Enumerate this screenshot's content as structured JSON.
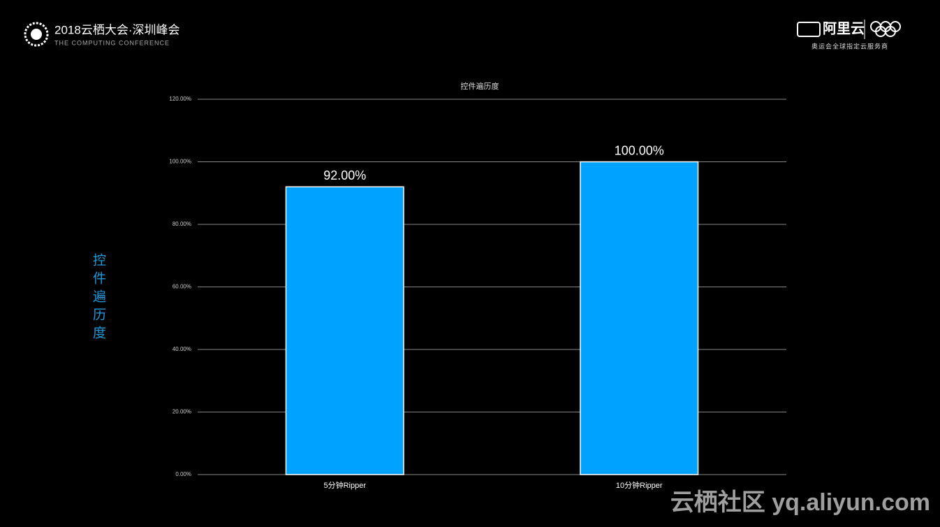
{
  "header": {
    "event": "2018云栖大会·深圳峰会",
    "event_subtitle": "THE COMPUTING CONFERENCE",
    "brand": "阿里云",
    "brand_subtitle": "奥运会全球指定云服务商"
  },
  "watermark": "云栖社区 yq.aliyun.com",
  "chart_data": {
    "type": "bar",
    "title": "控件遍历度",
    "y_label": "控件遍历度",
    "categories": [
      "5分钟Ripper",
      "10分钟Ripper"
    ],
    "values": [
      92,
      100
    ],
    "value_labels": [
      "92.00%",
      "100.00%"
    ],
    "color": "#00a2ff",
    "ylim": [
      0,
      120
    ],
    "yticks": [
      {
        "value": 0,
        "label": "0.00%"
      },
      {
        "value": 20,
        "label": "20.00%"
      },
      {
        "value": 40,
        "label": "40.00%"
      },
      {
        "value": 60,
        "label": "60.00%"
      },
      {
        "value": 80,
        "label": "80.00%"
      },
      {
        "value": 100,
        "label": "100.00%"
      },
      {
        "value": 120,
        "label": "120.00%"
      }
    ],
    "grid": true
  }
}
